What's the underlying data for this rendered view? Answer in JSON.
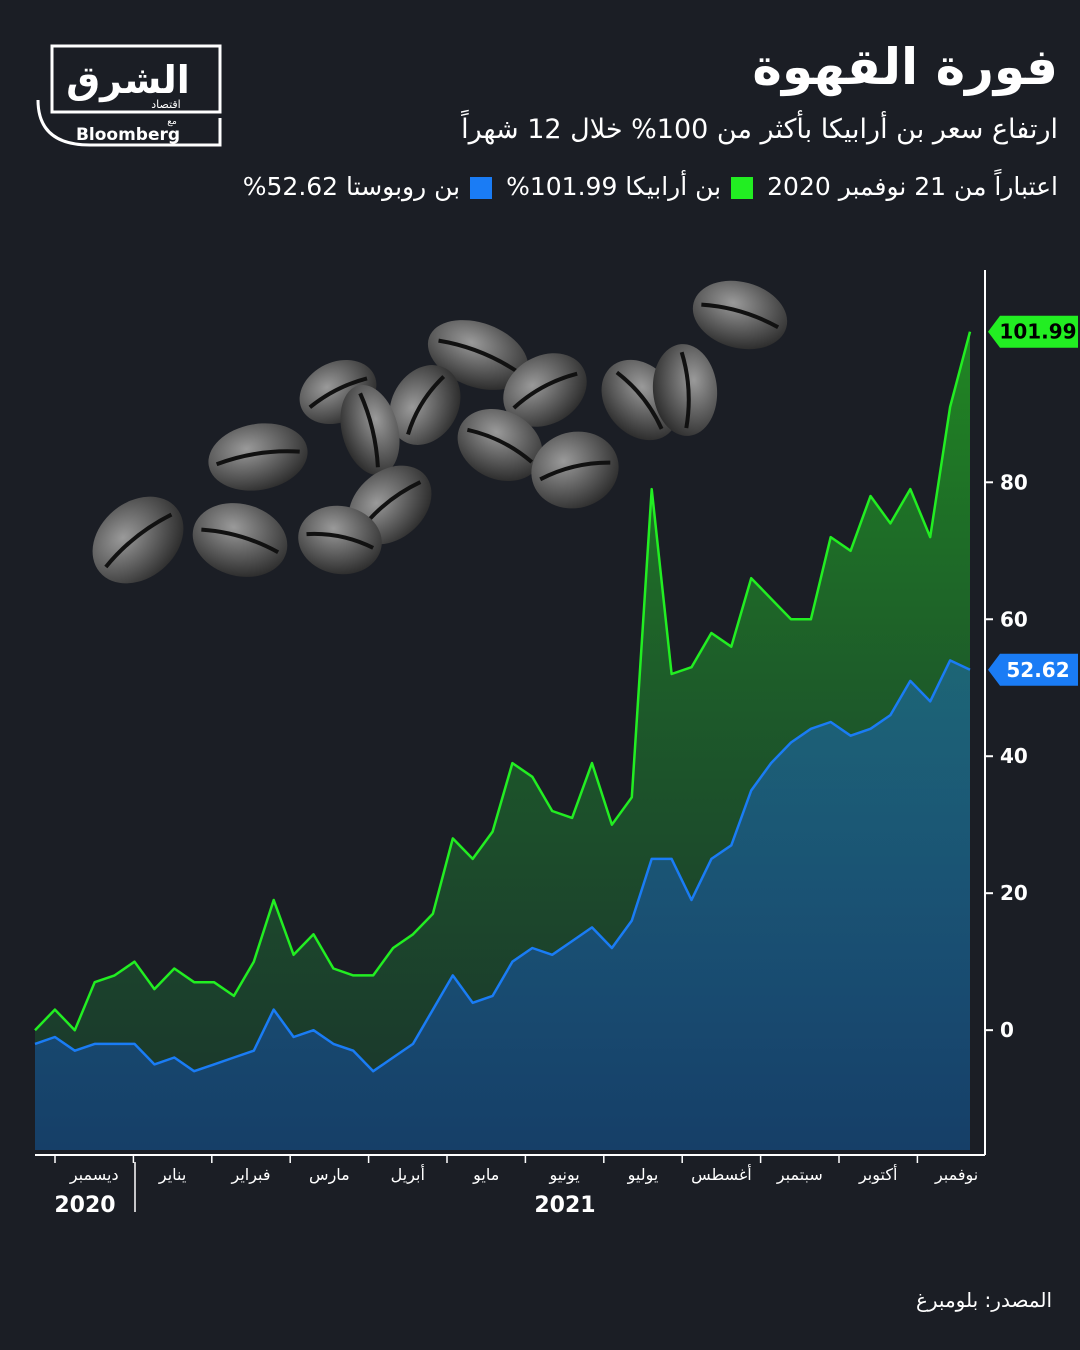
{
  "logo": {
    "brand": "الشرق",
    "sub": "اقتصاد",
    "with": "مع",
    "partner": "Bloomberg"
  },
  "chart_data": {
    "type": "line",
    "title": "فورة القهوة",
    "subtitle": "ارتفاع سعر بن أرابيكا بأكثر من 100% خلال 12 شهراً",
    "note": "اعتباراً من 21 نوفمبر 2020",
    "months": [
      "ديسمبر",
      "يناير",
      "فبراير",
      "مارس",
      "أبريل",
      "مايو",
      "يونيو",
      "يوليو",
      "أغسطس",
      "سبتمبر",
      "أكتوبر",
      "نوفمبر"
    ],
    "years": [
      "2020",
      "2021"
    ],
    "series": [
      {
        "name": "بن أرابيكا 101.99%",
        "color": "#22ee22",
        "values": [
          0,
          3,
          0,
          7,
          8,
          10,
          6,
          9,
          7,
          7,
          5,
          10,
          19,
          11,
          14,
          9,
          8,
          8,
          12,
          14,
          17,
          28,
          25,
          29,
          39,
          37,
          32,
          31,
          39,
          30,
          34,
          79,
          52,
          53,
          58,
          56,
          66,
          63,
          60,
          60,
          72,
          70,
          78,
          74,
          79,
          72,
          91,
          101.99
        ]
      },
      {
        "name": "بن روبوستا 52.62%",
        "color": "#1a7cf5",
        "values": [
          -2,
          -1,
          -3,
          -2,
          -2,
          -2,
          -5,
          -4,
          -6,
          -5,
          -4,
          -3,
          3,
          -1,
          0,
          -2,
          -3,
          -6,
          -4,
          -2,
          3,
          8,
          4,
          5,
          10,
          12,
          11,
          13,
          15,
          12,
          16,
          25,
          25,
          19,
          25,
          27,
          35,
          39,
          42,
          44,
          45,
          43,
          44,
          46,
          51,
          48,
          54,
          52.62
        ]
      }
    ],
    "ylim": [
      -17.5,
      111
    ],
    "yticks": [
      0,
      20,
      40,
      60,
      80
    ],
    "source": "المصدر: بلومبرغ"
  }
}
